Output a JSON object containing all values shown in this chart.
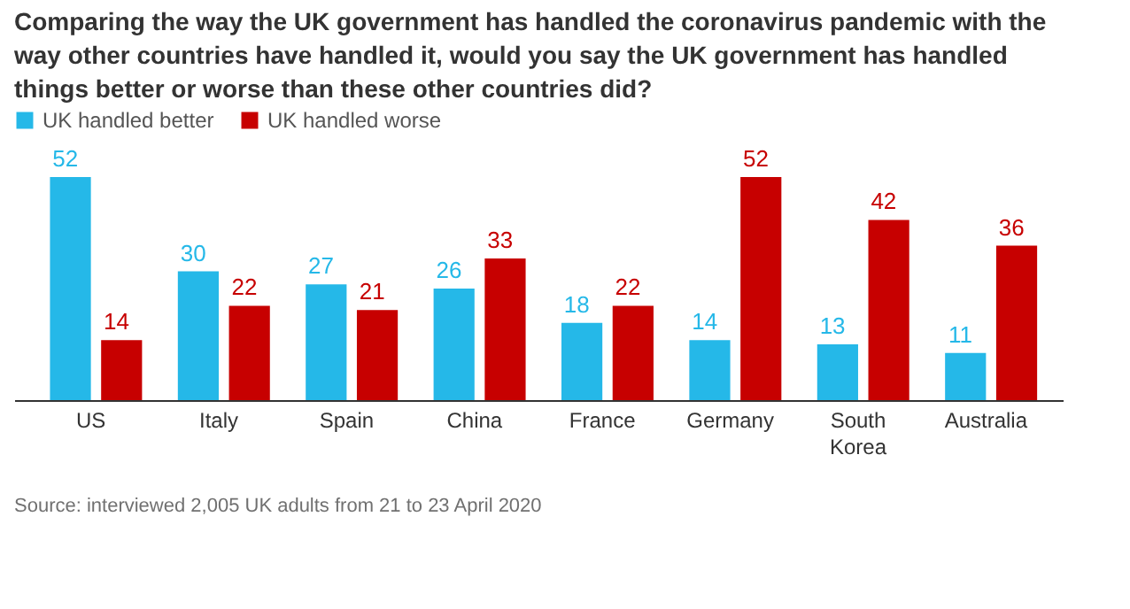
{
  "chart_data": {
    "type": "bar",
    "title": "Comparing the way the UK government has handled the coronavirus pandemic with the way other countries have handled it, would you say the UK government has handled things better or worse than these other countries did?",
    "categories": [
      "US",
      "Italy",
      "Spain",
      "China",
      "France",
      "Germany",
      "South Korea",
      "Australia"
    ],
    "series": [
      {
        "name": "UK handled better",
        "color": "#25b8e8",
        "values": [
          52,
          30,
          27,
          26,
          18,
          14,
          13,
          11
        ]
      },
      {
        "name": "UK handled worse",
        "color": "#c70000",
        "values": [
          14,
          22,
          21,
          33,
          22,
          52,
          42,
          36
        ]
      }
    ],
    "data_labels": true,
    "legend": "top left",
    "annotations": [
      "Source: interviewed 2,005 UK adults from 21 to 23 April 2020"
    ]
  }
}
